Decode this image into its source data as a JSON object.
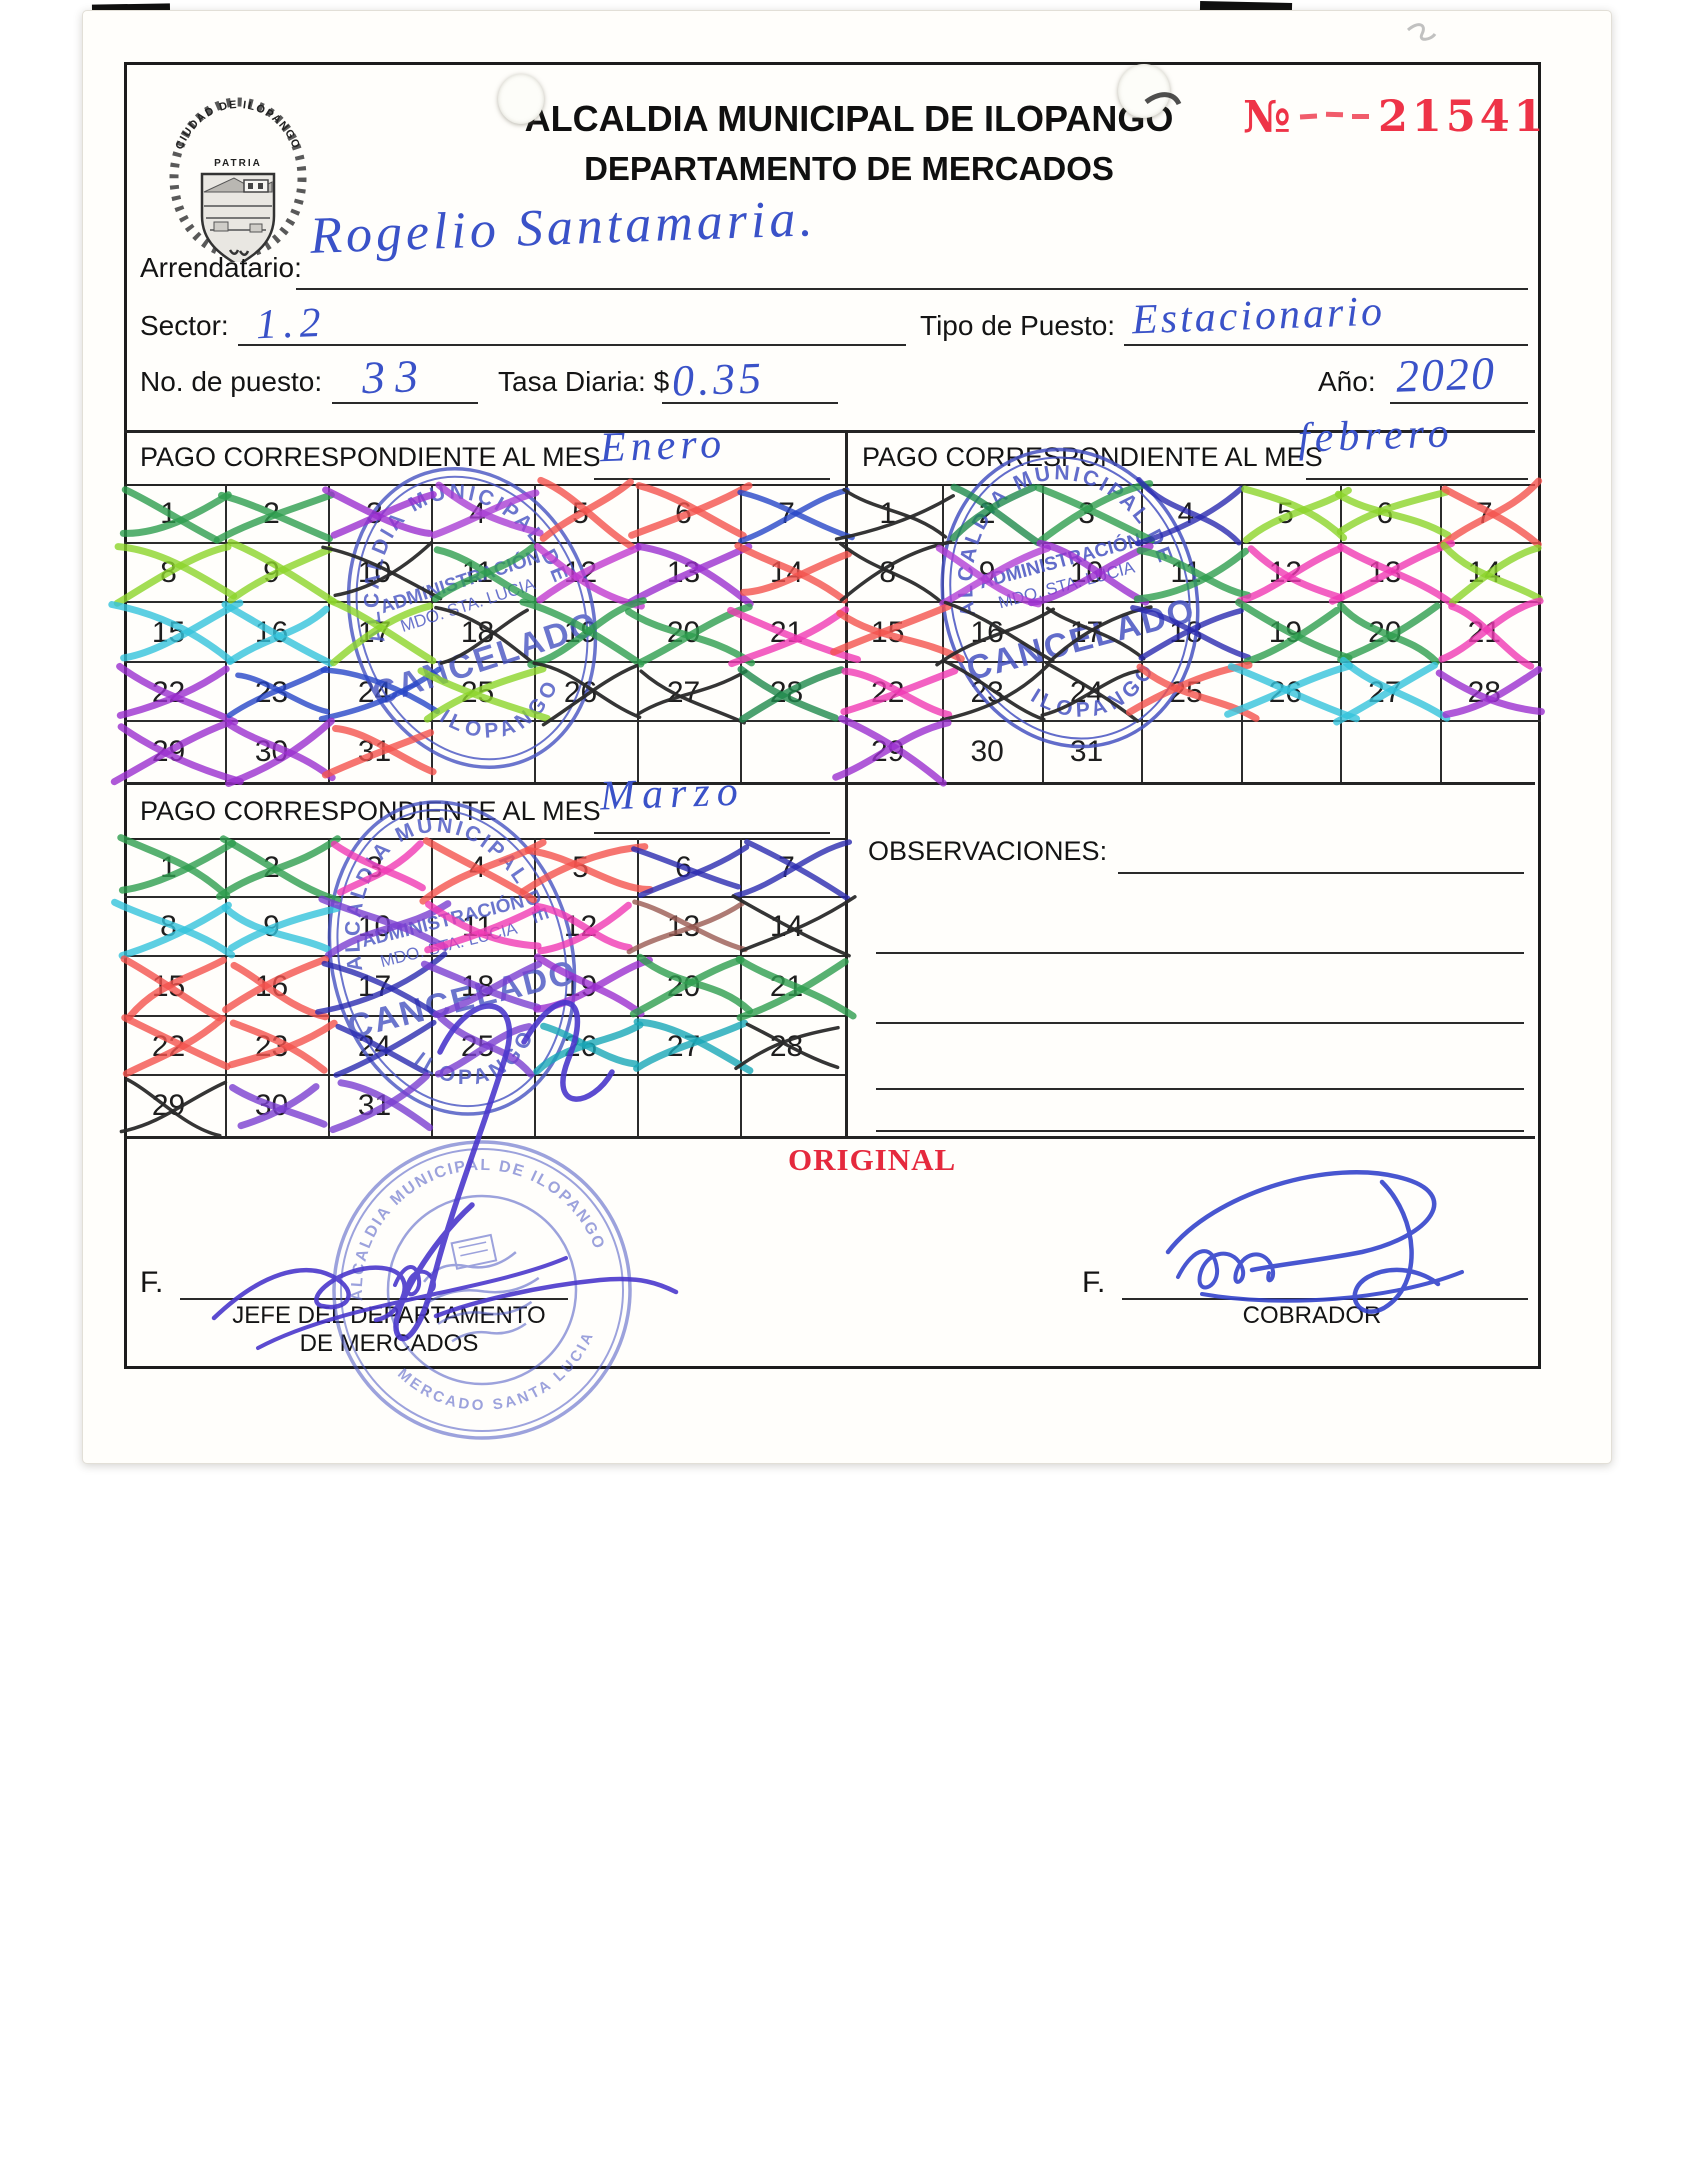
{
  "header": {
    "title_line1": "ALCALDIA MUNICIPAL DE ILOPANGO",
    "title_line2": "DEPARTAMENTO DE MERCADOS",
    "number_sign": "№",
    "number": "21541",
    "logo": {
      "arc_text": "CIUDAD DE ILOPANGO",
      "motto": "PATRIA"
    }
  },
  "fields": {
    "arrendatario": {
      "label": "Arrendatario:",
      "value": "Rogelio Santamaria."
    },
    "sector": {
      "label": "Sector:",
      "value": "1.2"
    },
    "tipo_puesto": {
      "label": "Tipo de Puesto:",
      "value": "Estacionario"
    },
    "no_puesto": {
      "label": "No. de puesto:",
      "value": "33"
    },
    "tasa_diaria": {
      "label": "Tasa Diaria: $",
      "value": "0.35"
    },
    "anio": {
      "label": "Año:",
      "value": "2020"
    }
  },
  "calendars": {
    "section_label": "PAGO CORRESPONDIENTE AL MES",
    "months": [
      {
        "name": "Enero",
        "days": 31,
        "mark_colors": [
          "#2e9e4f",
          "#2e9e4f",
          "#9b30d0",
          "#a93fd4",
          "#f4524d",
          "#f4524d",
          "#2746c8",
          "#8cd42a",
          "#8cd42a",
          "#2a2a2a",
          "#2e9e4f",
          "#c13ad0",
          "#9b30d0",
          "#f4524d",
          "#35c3dc",
          "#35c3dc",
          "#8cd42a",
          "#2a2a2a",
          "#2e9e4f",
          "#2e9e4f",
          "#f03ab4",
          "#9b30d0",
          "#2746c8",
          "#2746c8",
          "#8cd42a",
          "#2a2a2a",
          "#2a2a2a",
          "#1f8a4c",
          "#9b30d0",
          "#9b30d0",
          "#f4524d"
        ]
      },
      {
        "name": "febrero",
        "days": 31,
        "mark_colors": [
          "#2a2a2a",
          "#1f8a4c",
          "#2e9e4f",
          "#2b2bb0",
          "#8cd42a",
          "#8cd42a",
          "#f4524d",
          "#2a2a2a",
          "#b13fd6",
          "#9b30d0",
          "#2e9e4f",
          "#f03ab4",
          "#f03ab4",
          "#8cd42a",
          "#f4524d",
          "#2a2a2a",
          "#2a2a2a",
          "#2b2bb0",
          "#2e9e4f",
          "#2e9e4f",
          "#f03ab4",
          "#f03ab4",
          "#2a2a2a",
          "#2a2a2a",
          "#f4524d",
          "#35c3dc",
          "#35c3dc",
          "#9b30d0",
          "#9b30d0",
          null,
          null
        ]
      },
      {
        "name": "Marzo",
        "days": 31,
        "mark_colors": [
          "#2e9e4f",
          "#2e9e4f",
          "#f03ab4",
          "#f4524d",
          "#f4524d",
          "#2b2bb0",
          "#2b2bb0",
          "#35c3dc",
          "#35c3dc",
          "#7a3fd1",
          "#f03ab4",
          "#f03ab4",
          "#9a5a52",
          "#2a2a2a",
          "#f4524d",
          "#f4524d",
          "#2b2bb0",
          "#7a3fd1",
          "#9b30d0",
          "#2e9e4f",
          "#2e9e4f",
          "#f4524d",
          "#f4524d",
          "#2b2bb0",
          "#7a3fd1",
          "#19a8b8",
          "#19a8b8",
          "#2a2a2a",
          "#2a2a2a",
          "#7a3fd1",
          "#7a3fd1"
        ]
      }
    ]
  },
  "observaciones": {
    "label": "OBSERVACIONES:"
  },
  "footer": {
    "original_label": "ORIGINAL",
    "left": {
      "f_label": "F.",
      "role_line1": "JEFE DEL DEPARTAMENTO",
      "role_line2": "DE MERCADOS"
    },
    "right": {
      "f_label": "F.",
      "role": "COBRADOR"
    }
  },
  "stamp": {
    "arc_top": "ALCALDIA MUNICIPAL DE",
    "arc_bottom": "ILOPANGO",
    "line1": "ADMINISTRACIÓN",
    "line2": "MDO. STA. LUCIA",
    "line3": "CANCELADO"
  },
  "seal": {
    "arc_top": "ALCALDIA MUNICIPAL DE ILOPANGO",
    "arc_bottom": "MERCADO SANTA LUCIA"
  },
  "colors": {
    "ink_blue": "#3a52c8",
    "stamp_blue": "#4753c2",
    "red": "#ee3347",
    "paper": "#fffefb"
  }
}
